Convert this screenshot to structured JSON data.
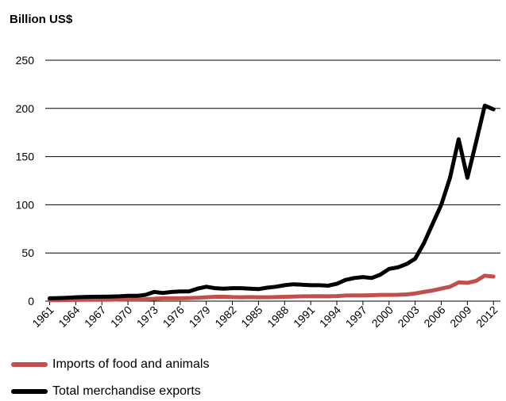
{
  "chart_data": {
    "type": "line",
    "ylabel": "Billion US$",
    "xlabel": "",
    "ylim": [
      0,
      250
    ],
    "yticks": [
      0,
      50,
      100,
      150,
      200,
      250
    ],
    "xticks": [
      "1961",
      "1964",
      "1967",
      "1970",
      "1973",
      "1976",
      "1979",
      "1982",
      "1985",
      "1988",
      "1991",
      "1994",
      "1997",
      "2000",
      "2003",
      "2006",
      "2009",
      "2012"
    ],
    "x": [
      1961,
      1962,
      1963,
      1964,
      1965,
      1966,
      1967,
      1968,
      1969,
      1970,
      1971,
      1972,
      1973,
      1974,
      1975,
      1976,
      1977,
      1978,
      1979,
      1980,
      1981,
      1982,
      1983,
      1984,
      1985,
      1986,
      1987,
      1988,
      1989,
      1990,
      1991,
      1992,
      1993,
      1994,
      1995,
      1996,
      1997,
      1998,
      1999,
      2000,
      2001,
      2002,
      2003,
      2004,
      2005,
      2006,
      2007,
      2008,
      2009,
      2010,
      2011,
      2012
    ],
    "grid": "horizontal",
    "legend_position": "bottom",
    "series": [
      {
        "name": "Imports of food and animals",
        "color": "#c0504d",
        "values": [
          1.0,
          1.1,
          1.2,
          1.3,
          1.4,
          1.5,
          1.5,
          1.6,
          1.7,
          1.8,
          1.9,
          2.0,
          2.5,
          3.0,
          3.0,
          3.0,
          3.2,
          3.5,
          4.0,
          4.5,
          4.6,
          4.2,
          4.0,
          4.2,
          4.0,
          4.0,
          4.2,
          4.5,
          4.8,
          5.0,
          5.0,
          5.2,
          5.0,
          5.3,
          5.8,
          6.0,
          6.0,
          6.2,
          6.5,
          6.5,
          6.6,
          7.0,
          8.0,
          9.5,
          11.0,
          13.0,
          15.0,
          19.5,
          19.0,
          21.0,
          26.5,
          25.5
        ]
      },
      {
        "name": "Total merchandise exports",
        "color": "#000000",
        "values": [
          3.0,
          3.2,
          3.5,
          4.0,
          4.3,
          4.5,
          4.6,
          4.8,
          5.0,
          5.5,
          5.5,
          6.5,
          9.5,
          8.5,
          9.5,
          10.0,
          10.0,
          13.0,
          15.0,
          13.5,
          13.0,
          13.5,
          13.5,
          13.0,
          12.5,
          14.0,
          15.0,
          16.5,
          17.5,
          17.0,
          16.5,
          16.5,
          16.0,
          18.0,
          22.0,
          24.0,
          25.0,
          24.0,
          27.5,
          33.5,
          35.0,
          38.5,
          44.0,
          60.0,
          80.0,
          100.0,
          128.0,
          168.0,
          128.0,
          165.0,
          203.0,
          199.0
        ]
      }
    ]
  }
}
